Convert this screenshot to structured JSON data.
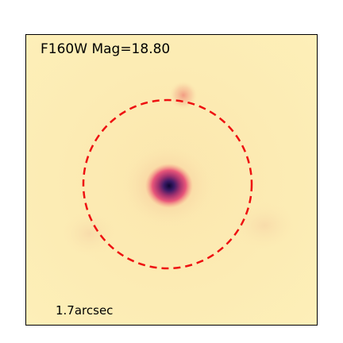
{
  "image": {
    "label": "F160W Mag=18.80",
    "scale_label": "1.7arcsec",
    "colors": {
      "background": "#fcedb5",
      "circle": "#ee1111",
      "core": "#1a0a40",
      "glow": "#e8567a"
    }
  }
}
